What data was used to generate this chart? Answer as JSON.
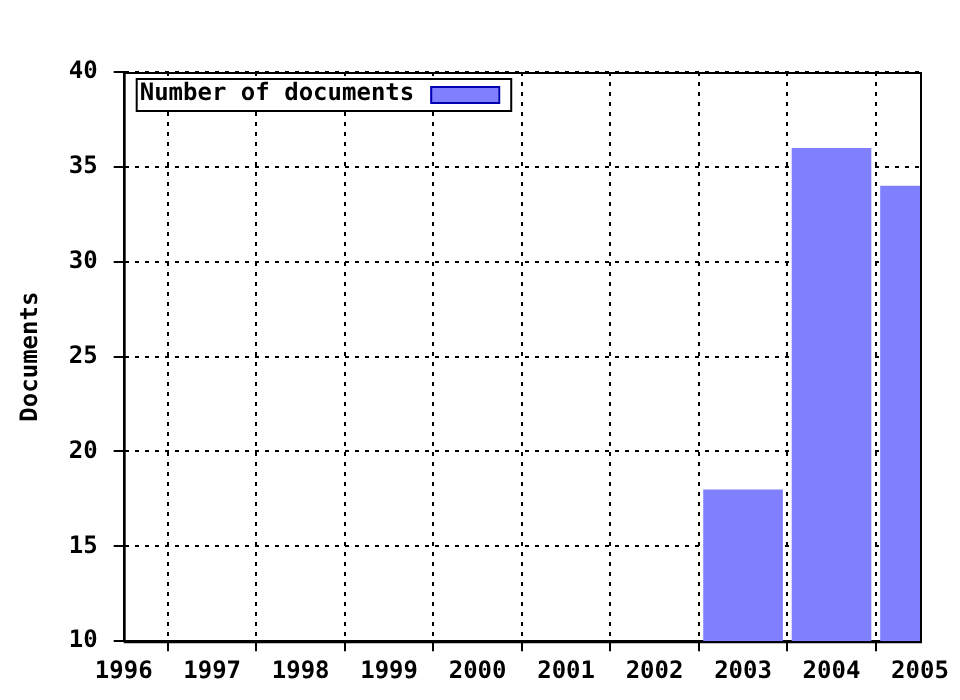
{
  "chart_data": {
    "type": "bar",
    "ylabel": "Documents",
    "x": [
      2003,
      2004,
      2005
    ],
    "series": [
      {
        "name": "Number of documents",
        "color": "#8080ff",
        "values": [
          18,
          36,
          34
        ]
      }
    ],
    "xlim": [
      1996,
      2005
    ],
    "xticks": [
      1996,
      1997,
      1998,
      1999,
      2000,
      2001,
      2002,
      2003,
      2004,
      2005
    ],
    "ylim": [
      10,
      40
    ],
    "yticks": [
      10,
      15,
      20,
      25,
      30,
      35,
      40
    ],
    "grid": true,
    "legend": "top left"
  }
}
